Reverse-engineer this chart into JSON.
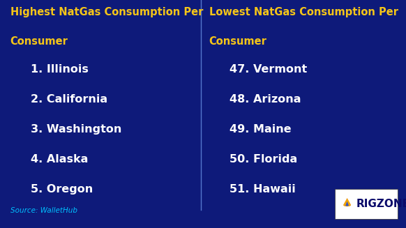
{
  "bg_color": "#0e1a7a",
  "title_color": "#f5c518",
  "text_color": "#ffffff",
  "source_color": "#00bfff",
  "divider_color": "#5577cc",
  "left_title_line1": "Highest NatGas Consumption Per",
  "left_title_line2": "Consumer",
  "right_title_line1": "Lowest NatGas Consumption Per",
  "right_title_line2": "Consumer",
  "left_items": [
    "1. Illinois",
    "2. California",
    "3. Washington",
    "4. Alaska",
    "5. Oregon"
  ],
  "right_items": [
    "47. Vermont",
    "48. Arizona",
    "49. Maine",
    "50. Florida",
    "51. Hawaii"
  ],
  "source_text": "Source: WalletHub",
  "rigzone_text": "RIGZ",
  "rigzone_text2": "NE",
  "title_fontsize": 10.5,
  "item_fontsize": 11.5,
  "source_fontsize": 7.5,
  "logo_fontsize": 11
}
